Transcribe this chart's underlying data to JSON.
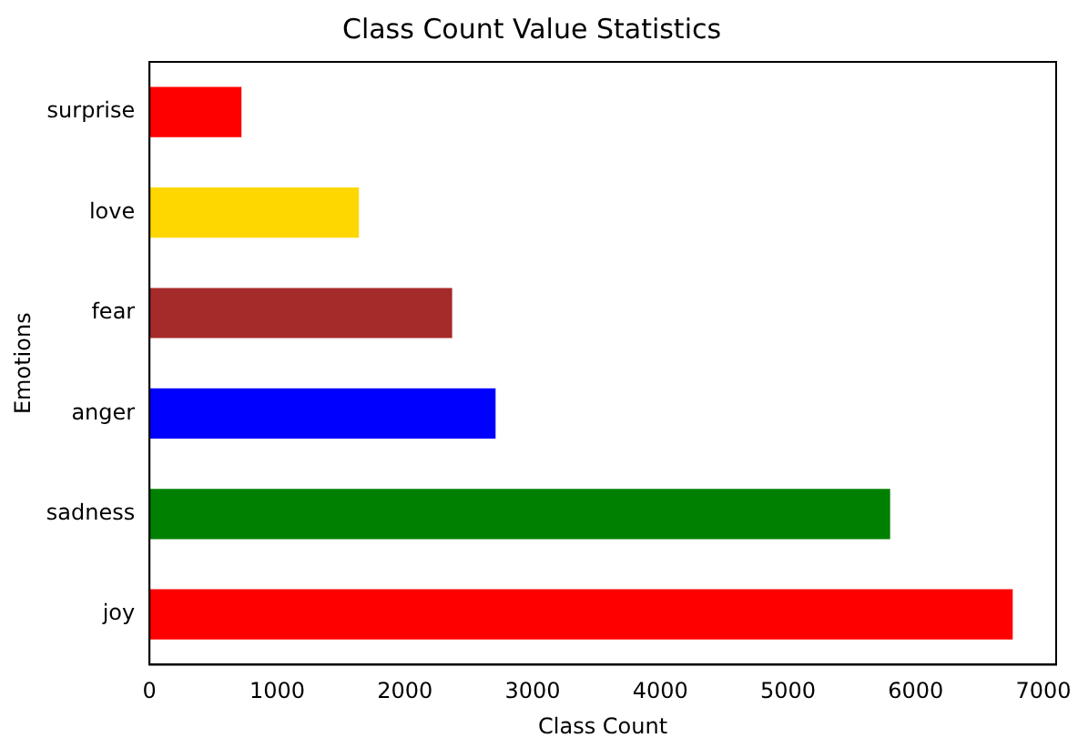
{
  "chart_data": {
    "type": "bar",
    "orientation": "horizontal",
    "title": "Class Count Value Statistics",
    "xlabel": "Class Count",
    "ylabel": "Emotions",
    "categories": [
      "surprise",
      "love",
      "fear",
      "anger",
      "sadness",
      "joy"
    ],
    "values": [
      720,
      1640,
      2370,
      2710,
      5800,
      6760
    ],
    "colors": [
      "#ff0000",
      "#ffd700",
      "#a52a2a",
      "#0000ff",
      "#008000",
      "#ff0000"
    ],
    "xlim": [
      0,
      7100
    ],
    "xticks": [
      0,
      1000,
      2000,
      3000,
      4000,
      5000,
      6000,
      7000
    ],
    "grid": false,
    "legend": false
  }
}
